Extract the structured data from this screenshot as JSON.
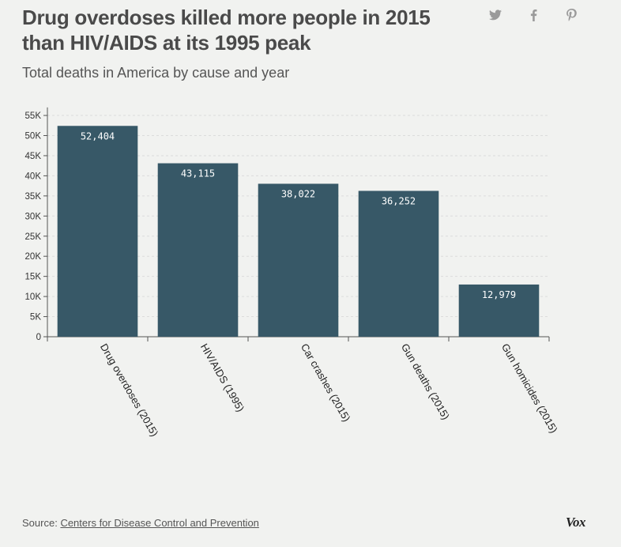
{
  "header": {
    "title": "Drug overdoses killed more people in 2015 than HIV/AIDS at its 1995 peak",
    "subtitle": "Total deaths in America by cause and year"
  },
  "share": {
    "icons": [
      "twitter-icon",
      "facebook-icon",
      "pinterest-icon"
    ]
  },
  "colors": {
    "bar": "#375867",
    "background": "#f1f2f0",
    "grid": "#dcdcdc"
  },
  "chart_data": {
    "type": "bar",
    "title": "Drug overdoses killed more people in 2015 than HIV/AIDS at its 1995 peak",
    "subtitle": "Total deaths in America by cause and year",
    "categories": [
      "Drug overdoses (2015)",
      "HIV/AIDS (1995)",
      "Car crashes (2015)",
      "Gun deaths (2015)",
      "Gun homicides (2015)"
    ],
    "values": [
      52404,
      43115,
      38022,
      36252,
      12979
    ],
    "value_labels": [
      "52,404",
      "43,115",
      "38,022",
      "36,252",
      "12,979"
    ],
    "y_ticks": [
      0,
      5000,
      10000,
      15000,
      20000,
      25000,
      30000,
      35000,
      40000,
      45000,
      50000,
      55000
    ],
    "y_tick_labels": [
      "0",
      "5K",
      "10K",
      "15K",
      "20K",
      "25K",
      "30K",
      "35K",
      "40K",
      "45K",
      "50K",
      "55K"
    ],
    "ylim": [
      0,
      57000
    ],
    "xlabel": "",
    "ylabel": "",
    "grid": true,
    "x_label_rotation": 60
  },
  "footer": {
    "source_prefix": "Source:",
    "source_link": "Centers for Disease Control and Prevention",
    "brand": "Vox"
  }
}
